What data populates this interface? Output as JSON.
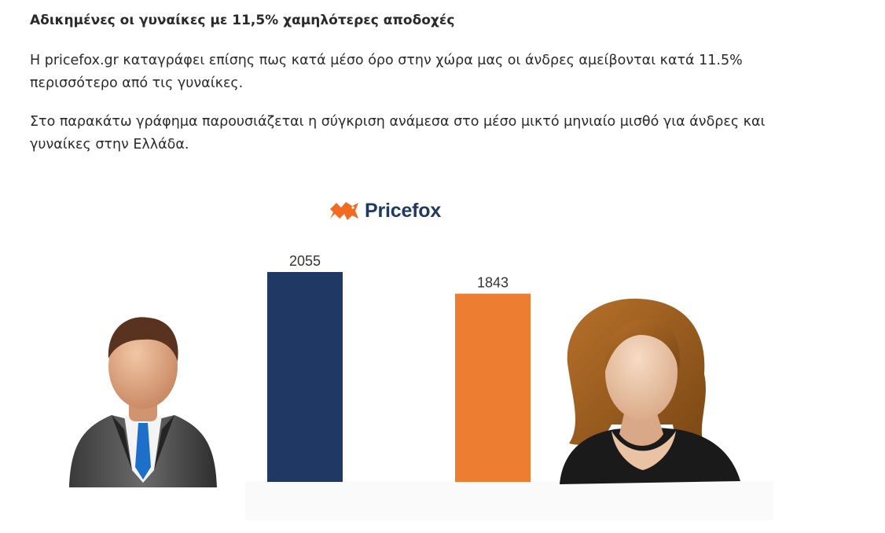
{
  "article": {
    "heading": "Αδικημένες οι γυναίκες με 11,5% χαμηλότερες αποδοχές",
    "paragraph_1": "Η pricefox.gr καταγράφει επίσης πως κατά μέσο όρο στην χώρα μας οι άνδρες αμείβονται κατά 11.5% περισσότερο από τις γυναίκες.",
    "paragraph_2": "Στο παρακάτω γράφημα παρουσιάζεται η σύγκριση ανάμεσα στο μέσο μικτό μηνιαίο μισθό για άνδρες και γυναίκες στην Ελλάδα."
  },
  "logo": {
    "text": "Pricefox",
    "icon": "fox-icon",
    "color": "#f26b21"
  },
  "chart_data": {
    "type": "bar",
    "categories": [
      "",
      ""
    ],
    "values": [
      2055,
      1843
    ],
    "data_labels": [
      "2055",
      "1843"
    ],
    "colors": [
      "#1f3864",
      "#ed7d31"
    ],
    "icons": [
      "man-avatar-icon",
      "woman-avatar-icon"
    ],
    "title": "",
    "xlabel": "",
    "ylabel": "",
    "ylim": [
      0,
      2100
    ],
    "grid": false
  }
}
